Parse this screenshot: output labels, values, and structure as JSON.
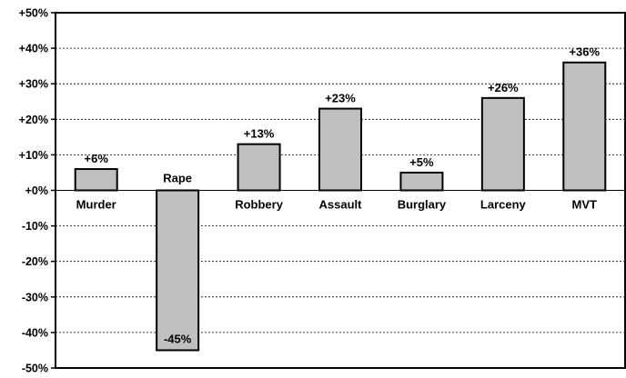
{
  "chart_data": {
    "type": "bar",
    "title": "",
    "xlabel": "",
    "ylabel": "",
    "categories": [
      "Murder",
      "Rape",
      "Robbery",
      "Assault",
      "Burglary",
      "Larceny",
      "MVT"
    ],
    "values": [
      6,
      -45,
      13,
      23,
      5,
      26,
      36
    ],
    "data_labels": [
      "+6%",
      "-45%",
      "+13%",
      "+23%",
      "+5%",
      "+26%",
      "+36%"
    ],
    "ylim": [
      -50,
      50
    ],
    "yticks": [
      50,
      40,
      30,
      20,
      10,
      0,
      -10,
      -20,
      -30,
      -40,
      -50
    ],
    "ytick_labels": [
      "+50%",
      "+40%",
      "+30%",
      "+20%",
      "+10%",
      "+0%",
      "-10%",
      "-20%",
      "-30%",
      "-40%",
      "-50%"
    ],
    "grid": "horizontal dotted",
    "legend": "none",
    "colors": {
      "bar_fill": "#c0c0c0",
      "bar_stroke": "#000000",
      "grid": "#000000",
      "background": "#ffffff"
    }
  }
}
